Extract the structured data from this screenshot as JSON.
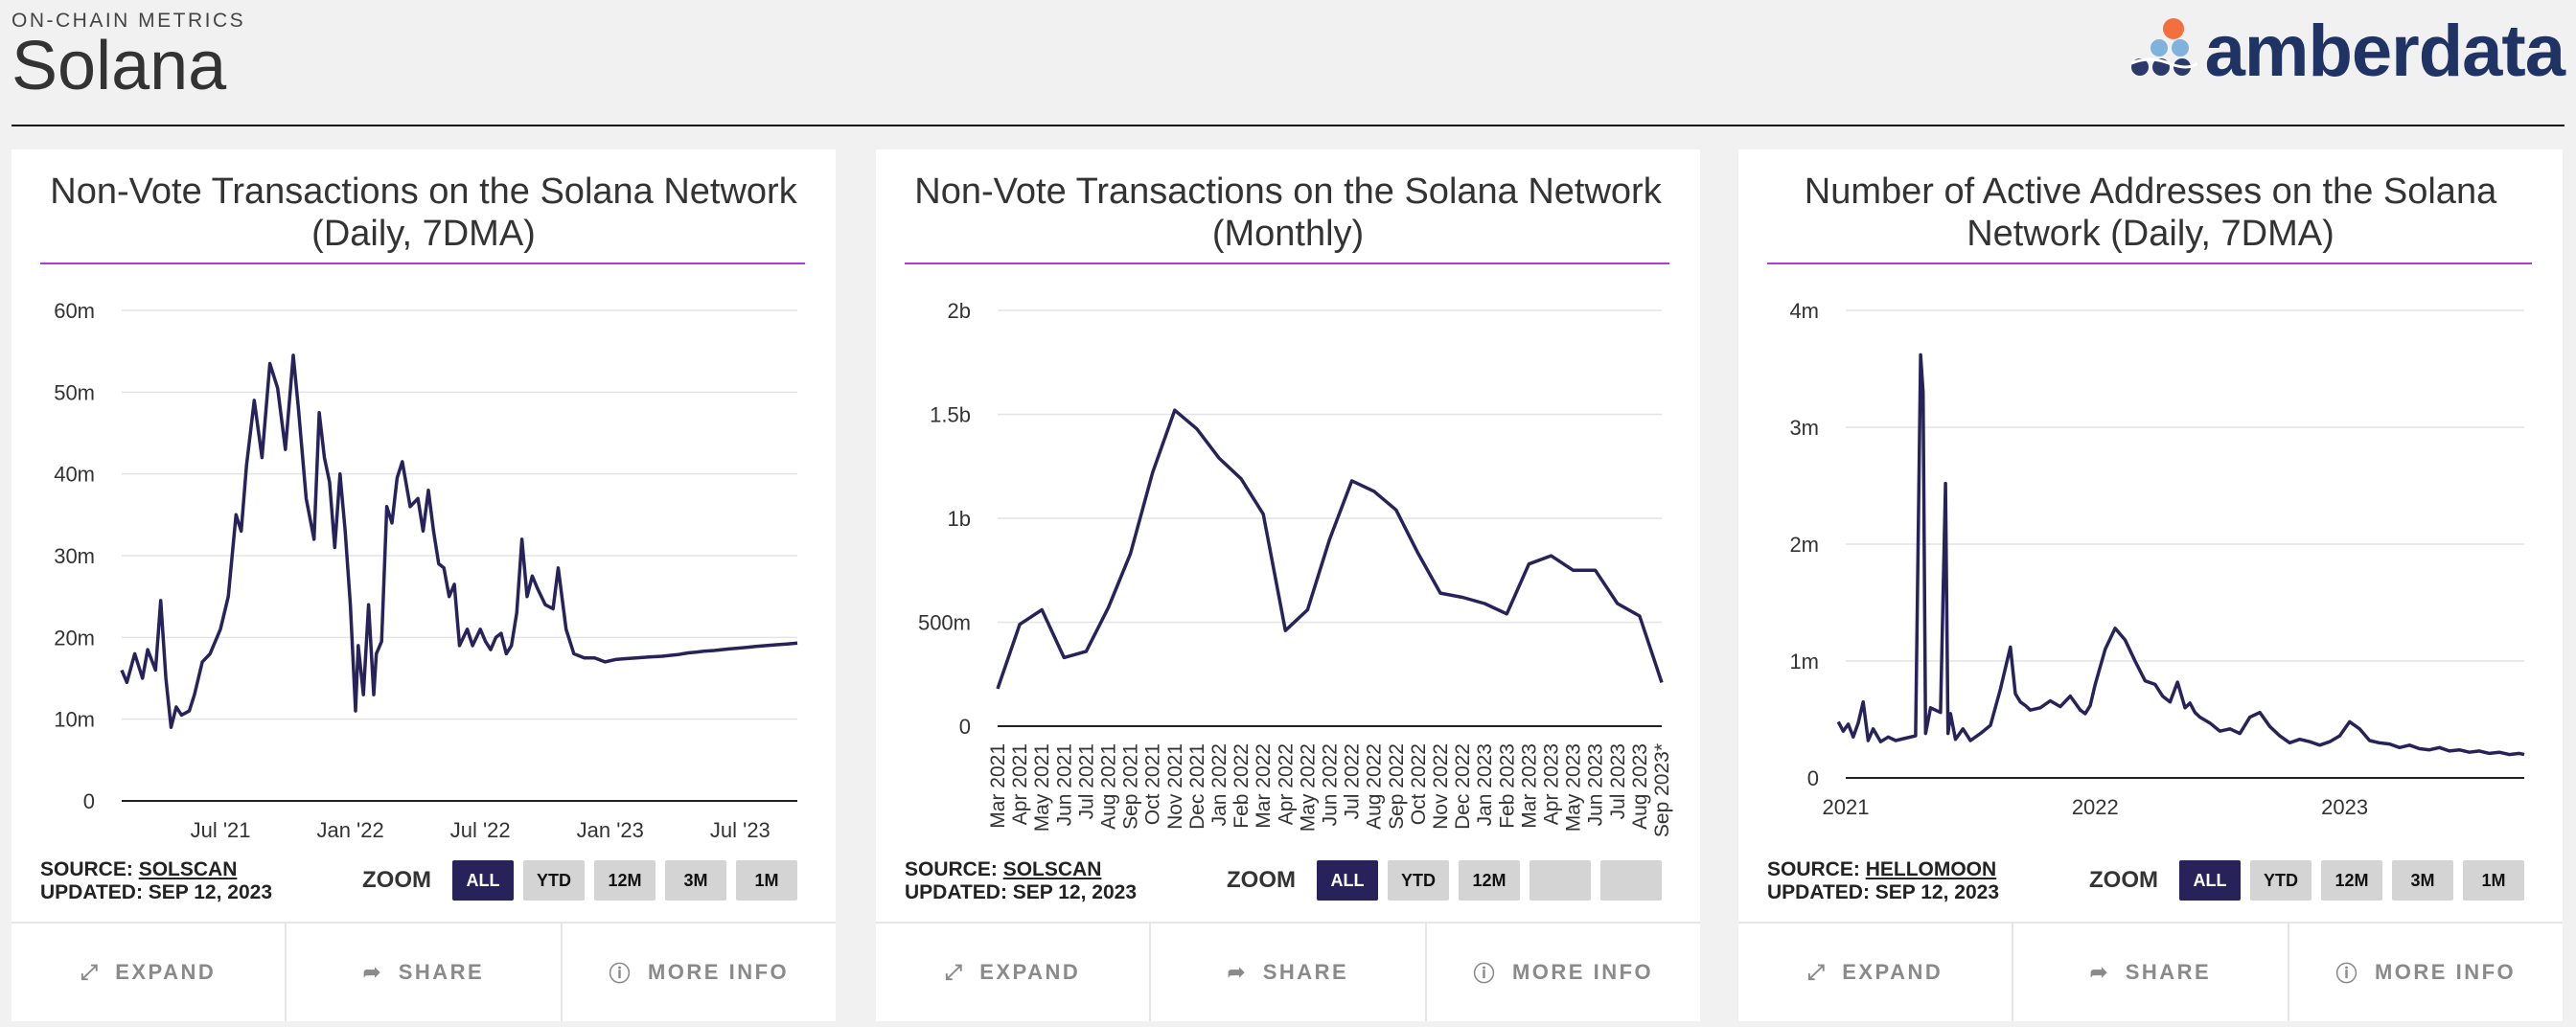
{
  "header": {
    "eyebrow": "ON-CHAIN METRICS",
    "title": "Solana",
    "logo_text": "amberdata"
  },
  "colors": {
    "line": "#27235a",
    "rule": "#b23bd6",
    "active_zoom": "#27235a",
    "logo_dot": "#f36f3d",
    "logo_dots": "#2b3a6b",
    "logo_light": "#7fb3de"
  },
  "cards": [
    {
      "title": "Non-Vote Transactions on the Solana Network (Daily, 7DMA)",
      "source_label": "SOURCE:",
      "source_name": "SOLSCAN",
      "updated": "UPDATED: SEP 12, 2023",
      "zoom_label": "ZOOM",
      "zoom_options": [
        "ALL",
        "YTD",
        "12M",
        "3M",
        "1M"
      ],
      "zoom_active": "ALL",
      "actions": [
        "EXPAND",
        "SHARE",
        "MORE INFO"
      ]
    },
    {
      "title": "Non-Vote Transactions on the Solana Network (Monthly)",
      "source_label": "SOURCE:",
      "source_name": "SOLSCAN",
      "updated": "UPDATED: SEP 12, 2023",
      "zoom_label": "ZOOM",
      "zoom_options": [
        "ALL",
        "YTD",
        "12M",
        "",
        ""
      ],
      "zoom_active": "ALL",
      "actions": [
        "EXPAND",
        "SHARE",
        "MORE INFO"
      ]
    },
    {
      "title": "Number of Active Addresses on the Solana Network (Daily, 7DMA)",
      "source_label": "SOURCE:",
      "source_name": "HELLOMOON",
      "updated": "UPDATED: SEP 12, 2023",
      "zoom_label": "ZOOM",
      "zoom_options": [
        "ALL",
        "YTD",
        "12M",
        "3M",
        "1M"
      ],
      "zoom_active": "ALL",
      "actions": [
        "EXPAND",
        "SHARE",
        "MORE INFO"
      ]
    }
  ],
  "chart_data": [
    {
      "type": "line",
      "title": "Non-Vote Transactions on the Solana Network (Daily, 7DMA)",
      "x_range": [
        2021.12,
        2023.72
      ],
      "ylim": [
        0,
        60000000
      ],
      "y_ticks": [
        0,
        10000000,
        20000000,
        30000000,
        40000000,
        50000000,
        60000000
      ],
      "y_tick_labels": [
        "0",
        "10m",
        "20m",
        "30m",
        "40m",
        "50m",
        "60m"
      ],
      "x_ticks": [
        2021.5,
        2022.0,
        2022.5,
        2023.0,
        2023.5
      ],
      "x_tick_labels": [
        "Jul '21",
        "Jan '22",
        "Jul '22",
        "Jan '23",
        "Jul '23"
      ],
      "grid": true,
      "series": [
        {
          "name": "Non-Vote Transactions",
          "x": [
            2021.12,
            2021.14,
            2021.17,
            2021.2,
            2021.22,
            2021.25,
            2021.27,
            2021.29,
            2021.31,
            2021.33,
            2021.35,
            2021.38,
            2021.4,
            2021.43,
            2021.46,
            2021.5,
            2021.53,
            2021.56,
            2021.58,
            2021.6,
            2021.63,
            2021.66,
            2021.69,
            2021.72,
            2021.75,
            2021.78,
            2021.8,
            2021.83,
            2021.86,
            2021.88,
            2021.9,
            2021.92,
            2021.94,
            2021.96,
            2021.98,
            2022.0,
            2022.02,
            2022.03,
            2022.05,
            2022.07,
            2022.09,
            2022.1,
            2022.12,
            2022.14,
            2022.16,
            2022.18,
            2022.2,
            2022.23,
            2022.26,
            2022.28,
            2022.3,
            2022.32,
            2022.34,
            2022.36,
            2022.38,
            2022.4,
            2022.42,
            2022.45,
            2022.47,
            2022.5,
            2022.52,
            2022.54,
            2022.56,
            2022.58,
            2022.6,
            2022.62,
            2022.64,
            2022.66,
            2022.68,
            2022.7,
            2022.72,
            2022.75,
            2022.78,
            2022.8,
            2022.83,
            2022.86,
            2022.9,
            2022.94,
            2022.98,
            2023.02,
            2023.06,
            2023.1,
            2023.15,
            2023.2,
            2023.23,
            2023.26,
            2023.28,
            2023.3,
            2023.33,
            2023.36,
            2023.4,
            2023.43,
            2023.46,
            2023.5,
            2023.53,
            2023.56,
            2023.6,
            2023.64,
            2023.68,
            2023.72
          ],
          "values": [
            16000000,
            14500000,
            18000000,
            15000000,
            18500000,
            16000000,
            24500000,
            15000000,
            9000000,
            11500000,
            10500000,
            11000000,
            13000000,
            17000000,
            18000000,
            21000000,
            25000000,
            35000000,
            33000000,
            41000000,
            49000000,
            42000000,
            53500000,
            50500000,
            43000000,
            54500000,
            48000000,
            37000000,
            32000000,
            47500000,
            42000000,
            39000000,
            31000000,
            40000000,
            33000000,
            24000000,
            11000000,
            19000000,
            13000000,
            24000000,
            13000000,
            18000000,
            19500000,
            36000000,
            34000000,
            39500000,
            41500000,
            36000000,
            37000000,
            33000000,
            38000000,
            33000000,
            29000000,
            28500000,
            25000000,
            26500000,
            19000000,
            21000000,
            19000000,
            21000000,
            19500000,
            18500000,
            20000000,
            20500000,
            18000000,
            19000000,
            23000000,
            32000000,
            25000000,
            27500000,
            26000000,
            24000000,
            23500000,
            28500000,
            21000000,
            18000000,
            17500000,
            17500000,
            17000000,
            17300000,
            17400000,
            17500000,
            17600000,
            17700000,
            17800000,
            17900000,
            18000000,
            18100000,
            18200000,
            18300000,
            18400000,
            18500000,
            18600000,
            18700000,
            18800000,
            18900000,
            19000000,
            19100000,
            19200000,
            19300000
          ]
        }
      ]
    },
    {
      "type": "line",
      "title": "Non-Vote Transactions on the Solana Network (Monthly)",
      "ylim": [
        0,
        2000000000
      ],
      "y_ticks": [
        0,
        500000000,
        1000000000,
        1500000000,
        2000000000
      ],
      "y_tick_labels": [
        "0",
        "500m",
        "1b",
        "1.5b",
        "2b"
      ],
      "categories": [
        "Mar 2021",
        "Apr 2021",
        "May 2021",
        "Jun 2021",
        "Jul 2021",
        "Aug 2021",
        "Sep 2021",
        "Oct 2021",
        "Nov 2021",
        "Dec 2021",
        "Jan 2022",
        "Feb 2022",
        "Mar 2022",
        "Apr 2022",
        "May 2022",
        "Jun 2022",
        "Jul 2022",
        "Aug 2022",
        "Sep 2022",
        "Oct 2022",
        "Nov 2022",
        "Dec 2022",
        "Jan 2023",
        "Feb 2023",
        "Mar 2023",
        "Apr 2023",
        "May 2023",
        "Jun 2023",
        "Jul 2023",
        "Aug 2023",
        "Sep 2023*"
      ],
      "grid": true,
      "series": [
        {
          "name": "Non-Vote Transactions",
          "values": [
            180000000,
            490000000,
            560000000,
            330000000,
            360000000,
            570000000,
            830000000,
            1220000000,
            1520000000,
            1430000000,
            1290000000,
            1190000000,
            1020000000,
            460000000,
            560000000,
            900000000,
            1180000000,
            1130000000,
            1040000000,
            830000000,
            640000000,
            620000000,
            590000000,
            540000000,
            780000000,
            820000000,
            750000000,
            750000000,
            590000000,
            530000000,
            210000000
          ]
        }
      ]
    },
    {
      "type": "line",
      "title": "Number of Active Addresses on the Solana Network (Daily, 7DMA)",
      "x_range": [
        2021.0,
        2023.72
      ],
      "ylim": [
        0,
        4000000
      ],
      "y_ticks": [
        0,
        1000000,
        2000000,
        3000000,
        4000000
      ],
      "y_tick_labels": [
        "0",
        "1m",
        "2m",
        "3m",
        "4m"
      ],
      "x_ticks": [
        2021.0,
        2022.0,
        2023.0
      ],
      "x_tick_labels": [
        "2021",
        "2022",
        "2023"
      ],
      "grid": true,
      "series": [
        {
          "name": "Active Addresses",
          "x": [
            2020.97,
            2020.99,
            2021.01,
            2021.03,
            2021.05,
            2021.07,
            2021.09,
            2021.11,
            2021.14,
            2021.17,
            2021.2,
            2021.24,
            2021.28,
            2021.3,
            2021.31,
            2021.32,
            2021.34,
            2021.38,
            2021.4,
            2021.41,
            2021.42,
            2021.44,
            2021.47,
            2021.5,
            2021.54,
            2021.58,
            2021.62,
            2021.66,
            2021.68,
            2021.7,
            2021.72,
            2021.74,
            2021.78,
            2021.82,
            2021.86,
            2021.9,
            2021.92,
            2021.94,
            2021.96,
            2021.98,
            2022.0,
            2022.04,
            2022.08,
            2022.12,
            2022.16,
            2022.2,
            2022.24,
            2022.27,
            2022.3,
            2022.33,
            2022.36,
            2022.38,
            2022.4,
            2022.42,
            2022.46,
            2022.5,
            2022.54,
            2022.58,
            2022.62,
            2022.66,
            2022.7,
            2022.74,
            2022.78,
            2022.82,
            2022.86,
            2022.9,
            2022.94,
            2022.98,
            2023.02,
            2023.06,
            2023.1,
            2023.14,
            2023.18,
            2023.22,
            2023.26,
            2023.3,
            2023.34,
            2023.38,
            2023.42,
            2023.46,
            2023.5,
            2023.54,
            2023.58,
            2023.62,
            2023.66,
            2023.7,
            2023.72
          ],
          "values": [
            480000,
            400000,
            460000,
            350000,
            470000,
            650000,
            320000,
            420000,
            310000,
            350000,
            320000,
            340000,
            360000,
            3620000,
            3300000,
            380000,
            600000,
            560000,
            2520000,
            380000,
            550000,
            330000,
            420000,
            320000,
            380000,
            450000,
            760000,
            1120000,
            720000,
            650000,
            620000,
            580000,
            600000,
            660000,
            610000,
            700000,
            640000,
            580000,
            550000,
            620000,
            800000,
            1100000,
            1280000,
            1180000,
            1000000,
            830000,
            800000,
            700000,
            650000,
            820000,
            600000,
            640000,
            560000,
            520000,
            470000,
            400000,
            420000,
            380000,
            520000,
            560000,
            440000,
            360000,
            300000,
            330000,
            310000,
            280000,
            310000,
            360000,
            480000,
            420000,
            320000,
            300000,
            290000,
            260000,
            280000,
            250000,
            240000,
            260000,
            230000,
            240000,
            220000,
            230000,
            210000,
            220000,
            200000,
            210000,
            200000
          ]
        }
      ]
    }
  ]
}
